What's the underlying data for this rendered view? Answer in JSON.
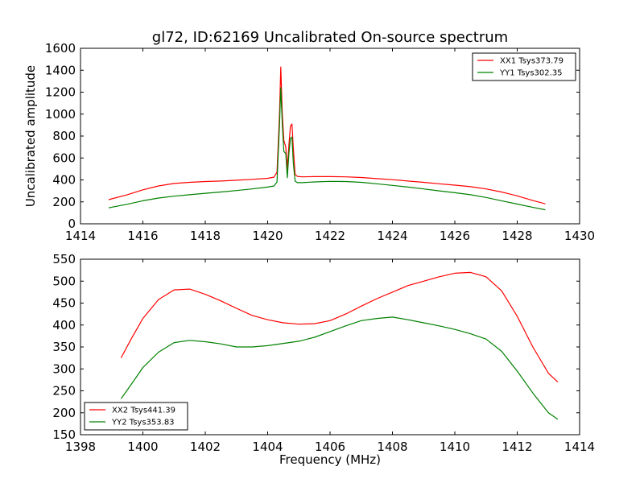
{
  "chart_data": [
    {
      "type": "line",
      "title": "gl72, ID:62169 Uncalibrated On-source spectrum",
      "xlabel": "",
      "ylabel": "Uncalibrated amplitude",
      "xlim": [
        1414,
        1430
      ],
      "ylim": [
        0,
        1600
      ],
      "xticks": [
        1414,
        1416,
        1418,
        1420,
        1422,
        1424,
        1426,
        1428,
        1430
      ],
      "yticks": [
        0,
        200,
        400,
        600,
        800,
        1000,
        1200,
        1400,
        1600
      ],
      "grid": false,
      "legend": "top-right",
      "series": [
        {
          "name": "XX1 Tsys373.79",
          "color": "#ff0000",
          "x": [
            1414.9,
            1415.5,
            1416.0,
            1416.5,
            1417.0,
            1417.5,
            1418.0,
            1418.5,
            1419.0,
            1419.5,
            1420.0,
            1420.2,
            1420.3,
            1420.38,
            1420.42,
            1420.47,
            1420.52,
            1420.58,
            1420.63,
            1420.68,
            1420.73,
            1420.78,
            1420.82,
            1420.88,
            1420.95,
            1421.1,
            1421.5,
            1422.0,
            1422.5,
            1423.0,
            1423.5,
            1424.0,
            1424.5,
            1425.0,
            1425.5,
            1426.0,
            1426.5,
            1427.0,
            1427.5,
            1428.0,
            1428.5,
            1428.9
          ],
          "y": [
            220,
            265,
            310,
            345,
            368,
            378,
            385,
            390,
            397,
            405,
            415,
            425,
            470,
            1000,
            1430,
            1000,
            760,
            700,
            500,
            720,
            890,
            910,
            700,
            450,
            432,
            428,
            430,
            430,
            428,
            422,
            412,
            402,
            390,
            378,
            365,
            352,
            338,
            318,
            290,
            255,
            212,
            182
          ]
        },
        {
          "name": "YY1 Tsys302.35",
          "color": "#008000",
          "x": [
            1414.9,
            1415.5,
            1416.0,
            1416.5,
            1417.0,
            1417.5,
            1418.0,
            1418.5,
            1419.0,
            1419.5,
            1420.0,
            1420.2,
            1420.3,
            1420.38,
            1420.42,
            1420.47,
            1420.52,
            1420.58,
            1420.63,
            1420.68,
            1420.73,
            1420.78,
            1420.82,
            1420.88,
            1420.95,
            1421.1,
            1421.5,
            1422.0,
            1422.5,
            1423.0,
            1423.5,
            1424.0,
            1424.5,
            1425.0,
            1425.5,
            1426.0,
            1426.5,
            1427.0,
            1427.5,
            1428.0,
            1428.5,
            1428.9
          ],
          "y": [
            145,
            178,
            210,
            235,
            252,
            265,
            278,
            290,
            303,
            318,
            335,
            345,
            380,
            900,
            1240,
            900,
            660,
            640,
            420,
            640,
            780,
            790,
            560,
            390,
            375,
            375,
            382,
            387,
            385,
            378,
            365,
            350,
            335,
            318,
            300,
            283,
            265,
            240,
            210,
            180,
            150,
            128
          ]
        }
      ]
    },
    {
      "type": "line",
      "title": "",
      "xlabel": "Frequency (MHz)",
      "ylabel": "",
      "xlim": [
        1398,
        1414
      ],
      "ylim": [
        150,
        550
      ],
      "xticks": [
        1398,
        1400,
        1402,
        1404,
        1406,
        1408,
        1410,
        1412,
        1414
      ],
      "yticks": [
        150,
        200,
        250,
        300,
        350,
        400,
        450,
        500,
        550
      ],
      "grid": false,
      "legend": "bottom-left",
      "series": [
        {
          "name": "XX2 Tsys441.39",
          "color": "#ff0000",
          "x": [
            1399.3,
            1399.6,
            1400.0,
            1400.5,
            1401.0,
            1401.5,
            1402.0,
            1402.5,
            1403.0,
            1403.5,
            1404.0,
            1404.5,
            1405.0,
            1405.5,
            1406.0,
            1406.5,
            1407.0,
            1407.5,
            1408.0,
            1408.5,
            1409.0,
            1409.5,
            1410.0,
            1410.5,
            1411.0,
            1411.5,
            1412.0,
            1412.5,
            1413.0,
            1413.3
          ],
          "y": [
            325,
            365,
            415,
            458,
            480,
            482,
            470,
            455,
            438,
            422,
            412,
            405,
            402,
            403,
            410,
            425,
            443,
            460,
            475,
            490,
            500,
            510,
            518,
            520,
            510,
            478,
            420,
            350,
            290,
            270
          ]
        },
        {
          "name": "YY2 Tsys353.83",
          "color": "#008000",
          "x": [
            1399.3,
            1399.6,
            1400.0,
            1400.5,
            1401.0,
            1401.5,
            1402.0,
            1402.5,
            1403.0,
            1403.5,
            1404.0,
            1404.5,
            1405.0,
            1405.5,
            1406.0,
            1406.5,
            1407.0,
            1407.5,
            1408.0,
            1408.5,
            1409.0,
            1409.5,
            1410.0,
            1410.5,
            1411.0,
            1411.5,
            1412.0,
            1412.5,
            1413.0,
            1413.3
          ],
          "y": [
            232,
            262,
            303,
            338,
            360,
            365,
            362,
            357,
            350,
            350,
            353,
            358,
            363,
            372,
            385,
            398,
            410,
            415,
            418,
            412,
            405,
            398,
            390,
            380,
            368,
            340,
            295,
            245,
            200,
            185
          ]
        }
      ]
    }
  ]
}
